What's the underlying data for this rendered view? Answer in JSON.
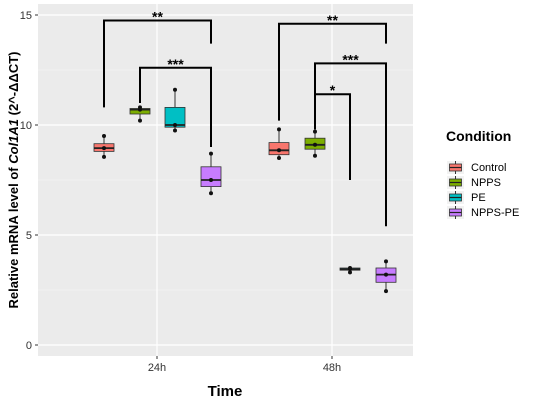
{
  "chart_data": {
    "type": "boxplot",
    "xlabel": "Time",
    "ylabel_prefix": "Relative mRNA level of ",
    "ylabel_gene": "Col1A1",
    "ylabel_suffix": " (2^-ΔΔCT)",
    "ylim": [
      -0.5,
      15.5
    ],
    "yticks": [
      0,
      5,
      10,
      15
    ],
    "categories": [
      "24h",
      "48h"
    ],
    "legend": {
      "title": "Condition",
      "entries": [
        "Control",
        "NPPS",
        "PE",
        "NPPS-PE"
      ]
    },
    "series": [
      {
        "name": "Control",
        "color": "#F8766D",
        "boxes": [
          {
            "category": "24h",
            "min": 8.55,
            "q1": 8.8,
            "median": 8.95,
            "q3": 9.15,
            "max": 9.5,
            "points": [
              8.55,
              8.95,
              9.5
            ]
          },
          {
            "category": "48h",
            "min": 8.5,
            "q1": 8.65,
            "median": 8.85,
            "q3": 9.2,
            "max": 9.8,
            "points": [
              8.5,
              8.85,
              9.8
            ]
          }
        ]
      },
      {
        "name": "NPPS",
        "color": "#7CAE00",
        "boxes": [
          {
            "category": "24h",
            "min": 10.2,
            "q1": 10.5,
            "median": 10.7,
            "q3": 10.75,
            "max": 10.8,
            "points": [
              10.2,
              10.7,
              10.8
            ]
          },
          {
            "category": "48h",
            "min": 8.6,
            "q1": 8.9,
            "median": 9.1,
            "q3": 9.4,
            "max": 9.7,
            "points": [
              8.6,
              9.1,
              9.7
            ]
          }
        ]
      },
      {
        "name": "PE",
        "color": "#00BFC4",
        "boxes": [
          {
            "category": "24h",
            "min": 9.75,
            "q1": 9.9,
            "median": 10.0,
            "q3": 10.8,
            "max": 11.6,
            "points": [
              9.75,
              10.0,
              11.6
            ]
          },
          {
            "category": "48h",
            "min": 3.3,
            "q1": 3.4,
            "median": 3.45,
            "q3": 3.5,
            "max": 3.5,
            "points": [
              3.3,
              3.45,
              3.5
            ]
          }
        ]
      },
      {
        "name": "NPPS-PE",
        "color": "#C77CFF",
        "boxes": [
          {
            "category": "24h",
            "min": 6.9,
            "q1": 7.2,
            "median": 7.5,
            "q3": 8.1,
            "max": 8.7,
            "points": [
              6.9,
              7.5,
              8.7
            ]
          },
          {
            "category": "48h",
            "min": 2.45,
            "q1": 2.85,
            "median": 3.2,
            "q3": 3.5,
            "max": 3.8,
            "points": [
              2.45,
              3.2,
              3.8
            ]
          }
        ]
      }
    ],
    "significance": [
      {
        "category": "24h",
        "from": "Control",
        "to": "NPPS-PE",
        "label": "**",
        "y_top": 14.75,
        "left_end": 10.8,
        "right_end": 13.7
      },
      {
        "category": "24h",
        "from": "NPPS",
        "to": "NPPS-PE",
        "label": "***",
        "y_top": 12.6,
        "left_end": 11.0,
        "right_end": 9.0
      },
      {
        "category": "48h",
        "from": "Control",
        "to": "NPPS-PE",
        "label": "**",
        "y_top": 14.6,
        "left_end": 10.2,
        "right_end": 13.7
      },
      {
        "category": "48h",
        "from": "NPPS",
        "to": "NPPS-PE",
        "label": "***",
        "y_top": 12.8,
        "left_end": 9.8,
        "right_end": 5.4
      },
      {
        "category": "48h",
        "from": "NPPS",
        "to": "PE",
        "label": "*",
        "y_top": 11.4,
        "left_end": 9.8,
        "right_end": 7.5
      }
    ]
  }
}
